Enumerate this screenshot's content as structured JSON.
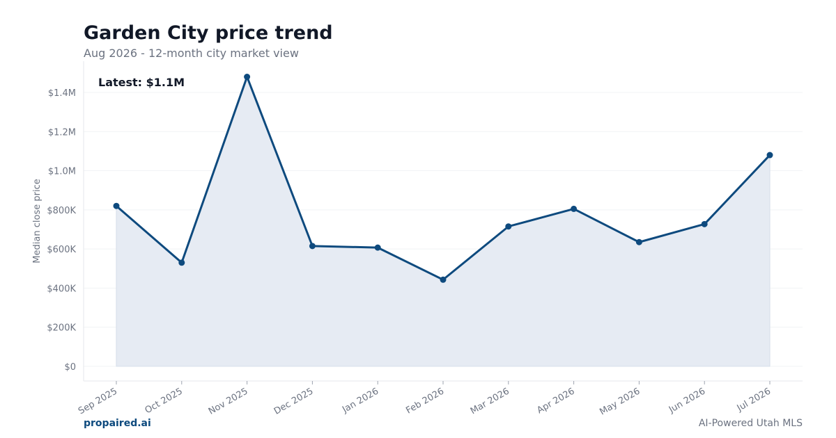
{
  "header": {
    "title": "Garden City price trend",
    "subtitle": "Aug 2026 - 12-month city market view"
  },
  "annotation": {
    "latest": "Latest: $1.1M"
  },
  "footer": {
    "brand": "propaired.ai",
    "tagline": "AI-Powered Utah MLS"
  },
  "colors": {
    "line": "#0e4a7e",
    "fill": "#e6ebf3",
    "grid": "#f1f3f5",
    "axis": "#e5e7eb"
  },
  "chart_data": {
    "type": "line",
    "title": "Garden City price trend",
    "subtitle": "Aug 2026 - 12-month city market view",
    "ylabel": "Median close price",
    "xlabel": "",
    "categories": [
      "Sep 2025",
      "Oct 2025",
      "Nov 2025",
      "Dec 2025",
      "Jan 2026",
      "Feb 2026",
      "Mar 2026",
      "Apr 2026",
      "May 2026",
      "Jun 2026",
      "Jul 2026"
    ],
    "values": [
      820000,
      530000,
      1480000,
      615000,
      607000,
      443000,
      715000,
      805000,
      635000,
      727000,
      1080000
    ],
    "yticks": [
      0,
      200000,
      400000,
      600000,
      800000,
      1000000,
      1200000,
      1400000
    ],
    "ytick_labels": [
      "$0",
      "$200K",
      "$400K",
      "$600K",
      "$800K",
      "$1.0M",
      "$1.2M",
      "$1.4M"
    ],
    "ylim": [
      -75000,
      1560000
    ],
    "grid": true,
    "area_fill": true,
    "annotation": "Latest: $1.1M"
  }
}
